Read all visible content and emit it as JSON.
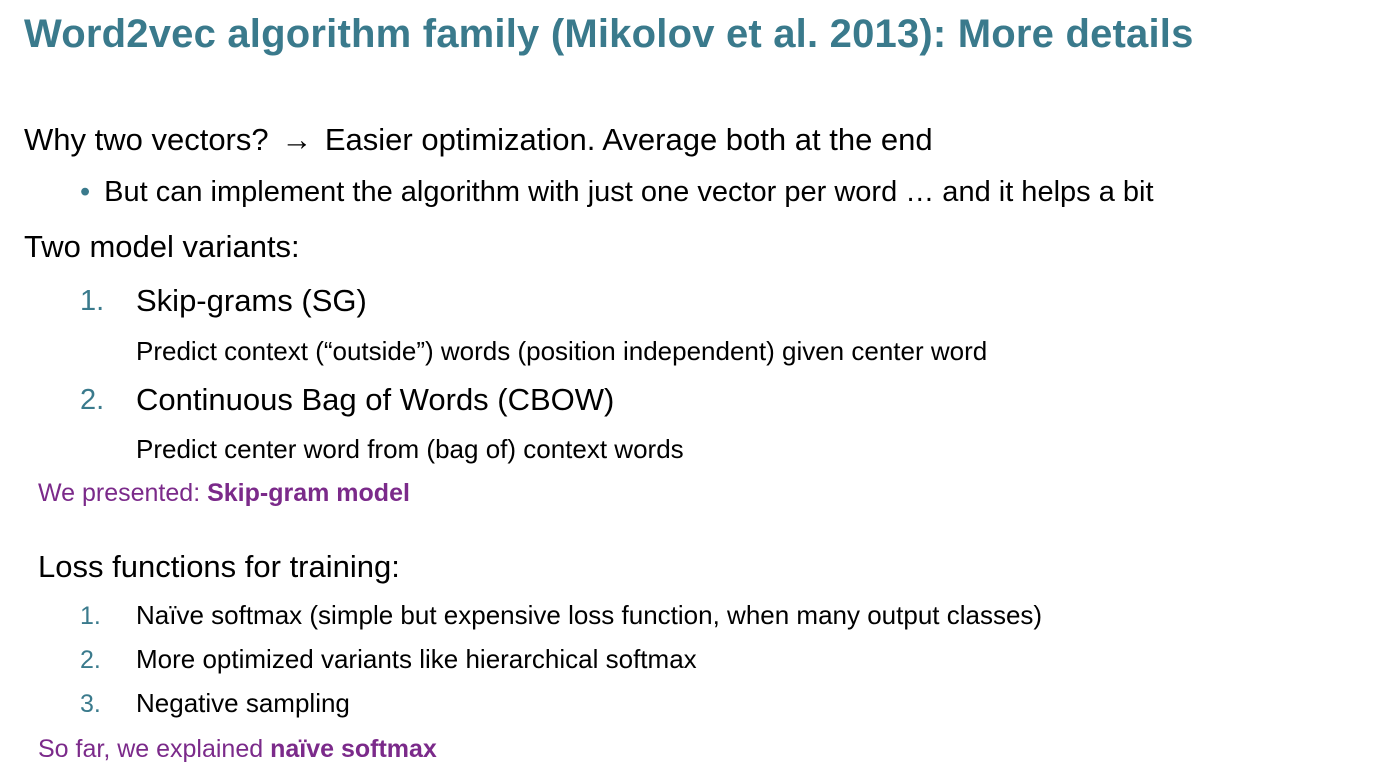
{
  "slide": {
    "title": "Word2vec algorithm family (Mikolov et al. 2013): More details",
    "why": {
      "lead": "Why two vectors?",
      "arrow": "→",
      "rest": "Easier optimization. Average both at the end"
    },
    "bullet": {
      "dot": "•",
      "text": "But can implement the algorithm with just one vector per word … and it helps a bit"
    },
    "variants_heading": "Two model variants:",
    "variants": [
      {
        "number": "1.",
        "name": "Skip-grams (SG)",
        "description": "Predict context (“outside”) words (position independent) given center word"
      },
      {
        "number": "2.",
        "name": "Continuous Bag of Words (CBOW)",
        "description": "Predict center word from (bag of) context words"
      }
    ],
    "presented_note": {
      "prefix": "We presented: ",
      "emphasis": "Skip-gram model"
    },
    "loss_heading": "Loss functions for training:",
    "loss_functions": [
      {
        "number": "1.",
        "text": "Naïve softmax (simple but expensive loss function, when many output classes)"
      },
      {
        "number": "2.",
        "text": "More optimized variants like hierarchical softmax"
      },
      {
        "number": "3.",
        "text": "Negative sampling"
      }
    ],
    "explained_note": {
      "prefix": "So far, we explained ",
      "emphasis": "naïve softmax"
    }
  },
  "colors": {
    "title": "#3a7a8c",
    "numbering": "#3a7a8c",
    "note": "#7b2a8a"
  }
}
